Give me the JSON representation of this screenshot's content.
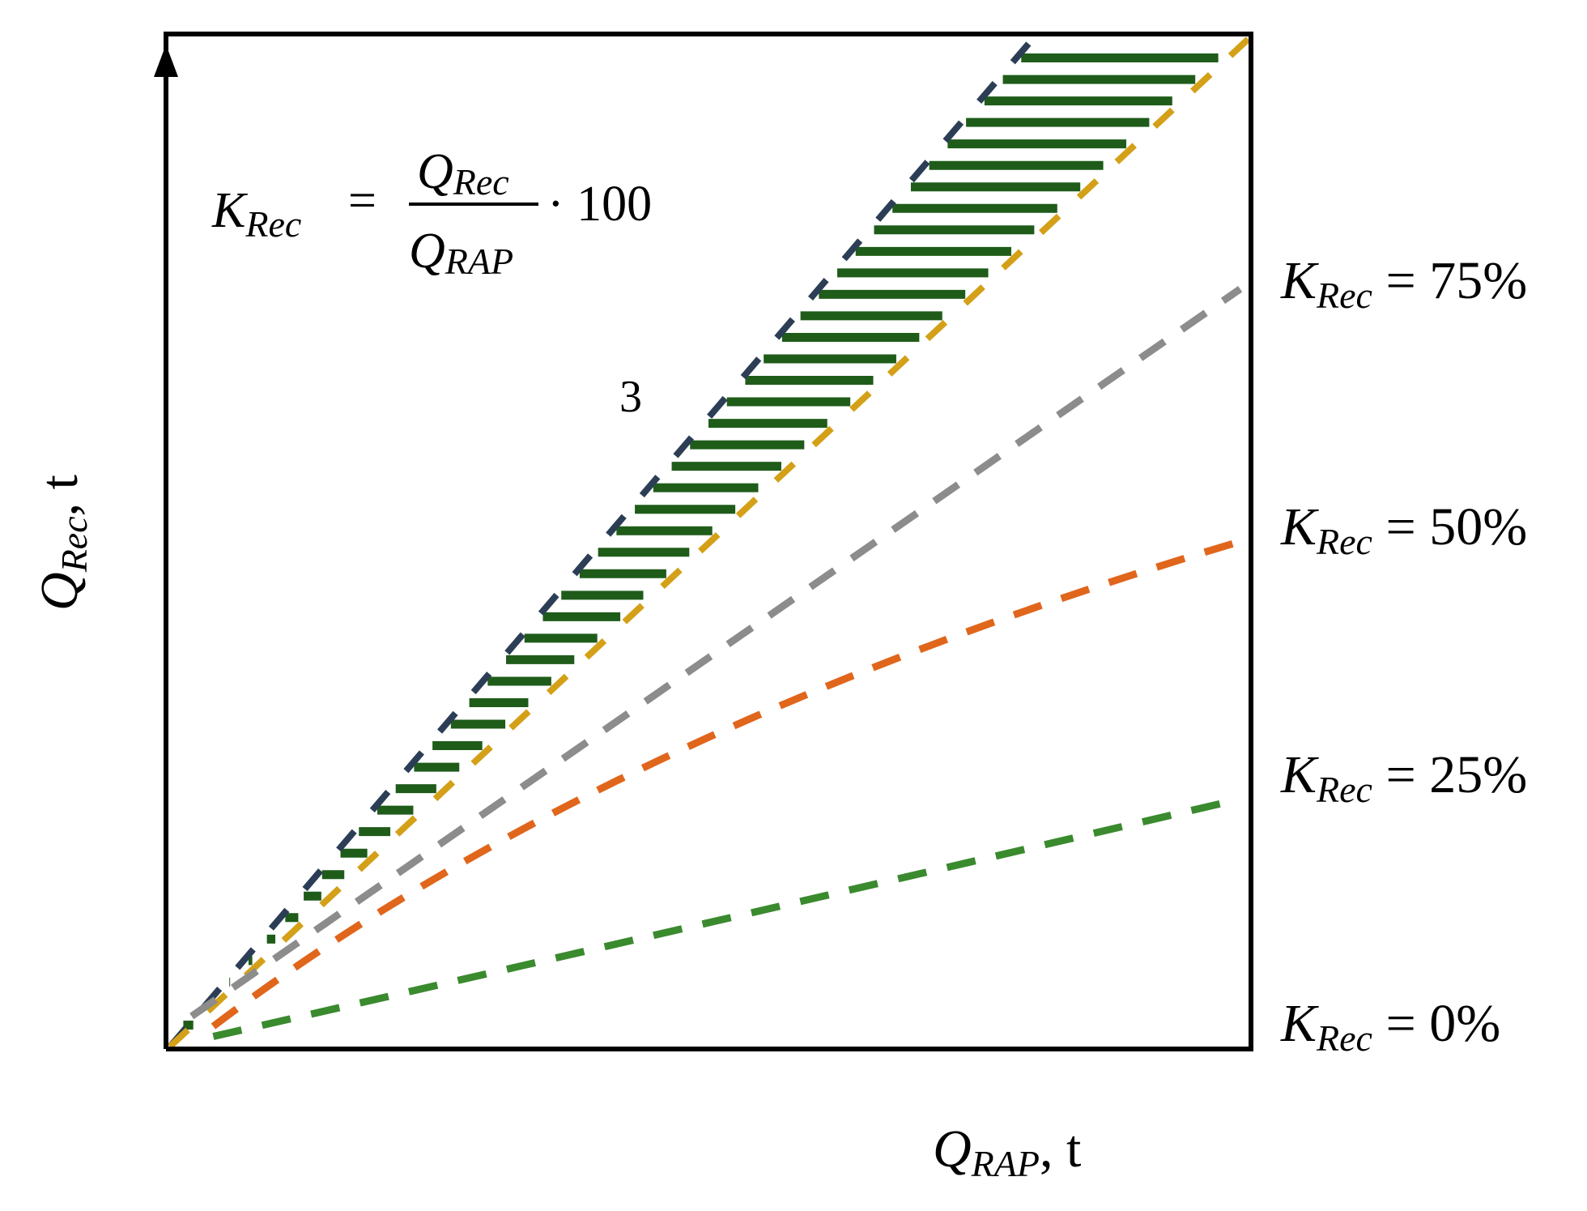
{
  "formula": {
    "lhs_symbol": "K",
    "lhs_sub": "Rec",
    "equals": "=",
    "num_symbol": "Q",
    "num_sub": "Rec",
    "den_symbol": "Q",
    "den_sub": "RAP",
    "multiplier": "· 100"
  },
  "axes": {
    "x_symbol": "Q",
    "x_sub": "RAP",
    "x_unit": ", t",
    "y_symbol": "Q",
    "y_sub": "Rec",
    "y_unit": ", t"
  },
  "region_label": "3",
  "curves": [
    {
      "symbol": "K",
      "sub": "Rec",
      "value_text": " = 75%",
      "color": "#8c8c8c",
      "end_y": 0.75,
      "bow": 0.0
    },
    {
      "symbol": "K",
      "sub": "Rec",
      "value_text": " = 50%",
      "color": "#e0661c",
      "end_y": 0.5,
      "bow": 0.12
    },
    {
      "symbol": "K",
      "sub": "Rec",
      "value_text": " = 25%",
      "color": "#3a8a2e",
      "end_y": 0.25,
      "bow": 0.2
    },
    {
      "symbol": "K",
      "sub": "Rec",
      "value_text": " = 0%",
      "color": "#3a8a2e",
      "end_y": 0.0,
      "bow": 0.0
    }
  ],
  "band": {
    "upper_color": "#2c3e55",
    "lower_color": "#d4a017",
    "hatch_color": "#1f5c1a"
  },
  "colors": {
    "frame": "#000000",
    "background": "#ffffff"
  }
}
